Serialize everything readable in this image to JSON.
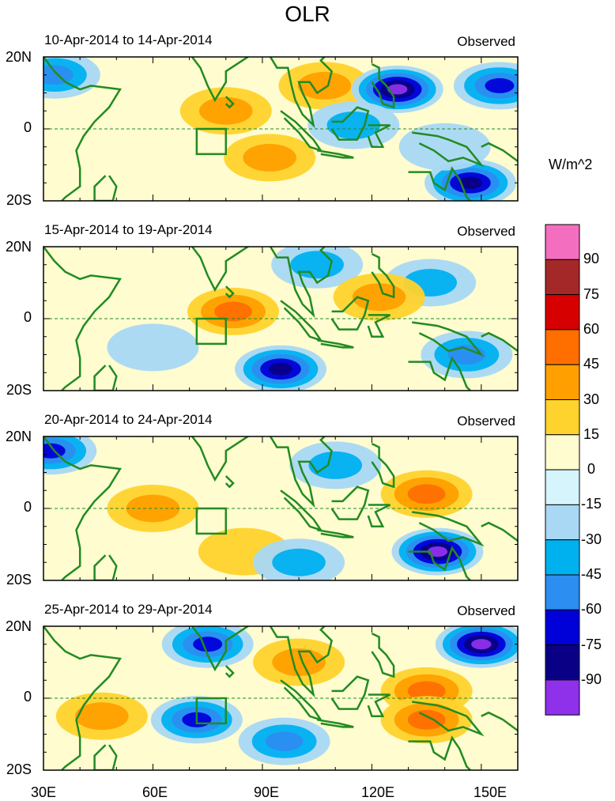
{
  "title": "OLR",
  "colorbar": {
    "unit": "W/m^2",
    "labels": [
      "90",
      "75",
      "60",
      "45",
      "30",
      "15",
      "0",
      "-15",
      "-30",
      "-45",
      "-60",
      "-75",
      "-90"
    ],
    "colors": [
      "#f46ec0",
      "#a52828",
      "#d60000",
      "#ff6f00",
      "#ffa000",
      "#ffd32d",
      "#fffcd0",
      "#d5f4fb",
      "#a9d8f4",
      "#00b1f0",
      "#2b8ef0",
      "#0000d8",
      "#0a0086",
      "#8f30ea"
    ]
  },
  "lat_labels": [
    "20N",
    "0",
    "20S"
  ],
  "lon_labels": [
    "30E",
    "60E",
    "90E",
    "120E",
    "150E"
  ],
  "map_colors": {
    "coast": "#228b22",
    "equator": "#228b22",
    "box": "#228b22"
  },
  "chart_data": {
    "type": "heatmap",
    "title": "OLR",
    "variable": "OLR anomaly",
    "unit": "W/m^2",
    "x_range": [
      30,
      160
    ],
    "y_range": [
      -20,
      20
    ],
    "x_ticks": [
      "30E",
      "60E",
      "90E",
      "120E",
      "150E"
    ],
    "y_ticks": [
      "20N",
      "0",
      "20S"
    ],
    "levels": [
      -90,
      -75,
      -60,
      -45,
      -30,
      -15,
      0,
      15,
      30,
      45,
      60,
      75,
      90
    ],
    "panels": [
      {
        "period": "10-Apr-2014 to 14-Apr-2014",
        "label": "Observed",
        "features": [
          {
            "lon": 80,
            "lat": 5,
            "value": 30
          },
          {
            "lon": 92,
            "lat": -8,
            "value": 30
          },
          {
            "lon": 107,
            "lat": 12,
            "value": 30
          },
          {
            "lon": 127,
            "lat": 11,
            "value": -90
          },
          {
            "lon": 147,
            "lat": -15,
            "value": -75
          },
          {
            "lon": 155,
            "lat": 12,
            "value": -60
          },
          {
            "lon": 115,
            "lat": 1,
            "value": -30
          },
          {
            "lon": 140,
            "lat": -5,
            "value": -15
          },
          {
            "lon": 33,
            "lat": 15,
            "value": -45
          }
        ]
      },
      {
        "period": "15-Apr-2014 to 19-Apr-2014",
        "label": "Observed",
        "features": [
          {
            "lon": 82,
            "lat": 2,
            "value": 45
          },
          {
            "lon": 95,
            "lat": -14,
            "value": -75
          },
          {
            "lon": 146,
            "lat": -10,
            "value": -45
          },
          {
            "lon": 136,
            "lat": 10,
            "value": -30
          },
          {
            "lon": 105,
            "lat": 15,
            "value": -30
          },
          {
            "lon": 122,
            "lat": 6,
            "value": 30
          },
          {
            "lon": 60,
            "lat": -8,
            "value": -15
          }
        ]
      },
      {
        "period": "20-Apr-2014 to 24-Apr-2014",
        "label": "Observed",
        "features": [
          {
            "lon": 135,
            "lat": 4,
            "value": 45
          },
          {
            "lon": 138,
            "lat": -12,
            "value": -90
          },
          {
            "lon": 32,
            "lat": 16,
            "value": -60
          },
          {
            "lon": 110,
            "lat": 12,
            "value": -30
          },
          {
            "lon": 60,
            "lat": 0,
            "value": 30
          },
          {
            "lon": 85,
            "lat": -12,
            "value": 15
          },
          {
            "lon": 100,
            "lat": -15,
            "value": -30
          }
        ]
      },
      {
        "period": "25-Apr-2014 to 29-Apr-2014",
        "label": "Observed",
        "features": [
          {
            "lon": 150,
            "lat": 15,
            "value": -90
          },
          {
            "lon": 135,
            "lat": 2,
            "value": 45
          },
          {
            "lon": 135,
            "lat": -6,
            "value": 45
          },
          {
            "lon": 72,
            "lat": -6,
            "value": -60
          },
          {
            "lon": 96,
            "lat": -12,
            "value": -45
          },
          {
            "lon": 75,
            "lat": 15,
            "value": -60
          },
          {
            "lon": 100,
            "lat": 10,
            "value": 30
          },
          {
            "lon": 46,
            "lat": -5,
            "value": 30
          }
        ]
      }
    ]
  }
}
